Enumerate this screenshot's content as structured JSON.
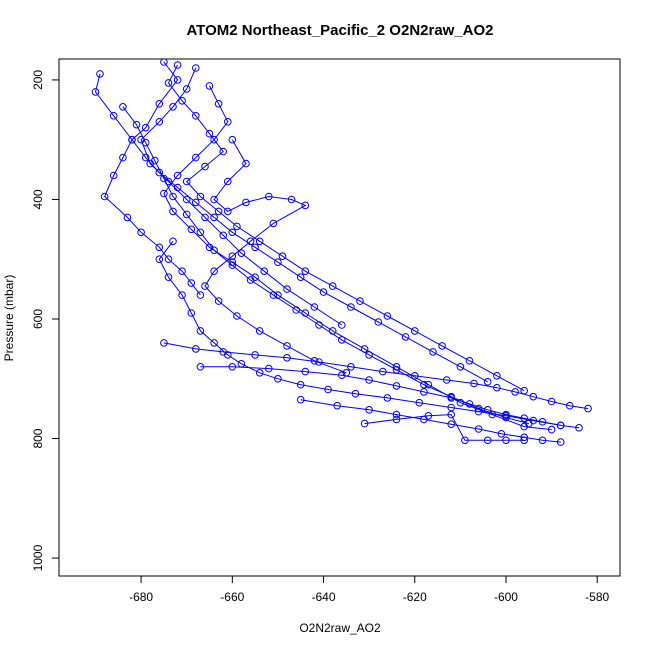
{
  "chart_data": {
    "type": "line",
    "title": "ATOM2 Northeast_Pacific_2 O2N2raw_AO2",
    "xlabel": "O2N2raw_AO2",
    "ylabel": "Pressure (mbar)",
    "xlim": [
      -698,
      -575
    ],
    "ylim": [
      1030,
      165
    ],
    "y_reversed": true,
    "grid": false,
    "xticks": [
      -680,
      -660,
      -640,
      -620,
      -600,
      -580
    ],
    "yticks": [
      200,
      400,
      600,
      800,
      1000
    ],
    "xtick_labels": [
      "-680",
      "-660",
      "-640",
      "-620",
      "-600",
      "-580"
    ],
    "ytick_labels": [
      "200",
      "400",
      "600",
      "800",
      "1000"
    ],
    "series": [
      {
        "color": "#0000ff",
        "marker": "open-circle",
        "x": [
          -675,
          -672,
          -676,
          -679,
          -682,
          -684,
          -686,
          -688,
          -683,
          -680,
          -676,
          -674,
          -671,
          -669,
          -667
        ],
        "y": [
          170,
          200,
          240,
          280,
          300,
          330,
          360,
          395,
          430,
          455,
          480,
          500,
          520,
          540,
          560
        ]
      },
      {
        "color": "#0000ff",
        "marker": "open-circle",
        "x": [
          -668,
          -670,
          -673,
          -676,
          -680,
          -678,
          -674,
          -670,
          -666,
          -662,
          -658,
          -653,
          -648,
          -642,
          -636
        ],
        "y": [
          180,
          215,
          245,
          270,
          300,
          340,
          370,
          400,
          430,
          460,
          490,
          520,
          550,
          580,
          610
        ]
      },
      {
        "color": "#0000ff",
        "marker": "open-circle",
        "x": [
          -689,
          -690,
          -686,
          -682,
          -679,
          -676,
          -672,
          -668,
          -664,
          -660,
          -655,
          -650,
          -645,
          -640,
          -634,
          -628,
          -622,
          -616,
          -610,
          -604
        ],
        "y": [
          190,
          220,
          260,
          300,
          330,
          355,
          380,
          405,
          430,
          455,
          480,
          505,
          530,
          555,
          580,
          605,
          630,
          655,
          680,
          705
        ]
      },
      {
        "color": "#0000ff",
        "marker": "open-circle",
        "x": [
          -672,
          -674,
          -671,
          -668,
          -665,
          -662,
          -666,
          -670,
          -667,
          -663,
          -659,
          -654,
          -649,
          -644,
          -638,
          -632,
          -626,
          -620,
          -614,
          -608,
          -602,
          -596
        ],
        "y": [
          175,
          205,
          235,
          260,
          290,
          320,
          345,
          370,
          395,
          420,
          445,
          470,
          495,
          520,
          545,
          570,
          595,
          620,
          645,
          670,
          695,
          720
        ]
      },
      {
        "color": "#0000ff",
        "marker": "open-circle",
        "x": [
          -665,
          -663,
          -661,
          -664,
          -668,
          -672,
          -675,
          -673,
          -669,
          -665,
          -660,
          -655,
          -650,
          -644,
          -638,
          -631,
          -624,
          -617,
          -610,
          -603,
          -596,
          -590
        ],
        "y": [
          210,
          240,
          270,
          300,
          330,
          360,
          390,
          420,
          450,
          480,
          505,
          530,
          560,
          590,
          620,
          650,
          680,
          710,
          740,
          760,
          780,
          785
        ]
      },
      {
        "color": "#0000ff",
        "marker": "open-circle",
        "x": [
          -684,
          -681,
          -679,
          -677,
          -675,
          -673,
          -670,
          -667,
          -664,
          -660,
          -656,
          -651,
          -646,
          -641,
          -636,
          -630,
          -624,
          -618,
          -612,
          -606,
          -600,
          -595
        ],
        "y": [
          245,
          275,
          305,
          335,
          365,
          395,
          425,
          455,
          485,
          510,
          535,
          560,
          585,
          610,
          635,
          660,
          685,
          710,
          730,
          750,
          765,
          775
        ]
      },
      {
        "color": "#0000ff",
        "marker": "open-circle",
        "x": [
          -660,
          -657,
          -661,
          -664,
          -661,
          -657,
          -652,
          -647,
          -644,
          -651,
          -656,
          -660,
          -664,
          -666,
          -663,
          -659,
          -654,
          -648,
          -642,
          -635
        ],
        "y": [
          300,
          340,
          370,
          400,
          420,
          405,
          395,
          400,
          410,
          440,
          470,
          495,
          520,
          545,
          570,
          595,
          620,
          645,
          670,
          690
        ]
      },
      {
        "color": "#0000ff",
        "marker": "open-circle",
        "x": [
          -673,
          -676,
          -674,
          -671,
          -669,
          -667,
          -664,
          -661,
          -658,
          -654,
          -650,
          -645,
          -639,
          -633,
          -626,
          -619,
          -612,
          -606,
          -600,
          -594,
          -588
        ],
        "y": [
          470,
          500,
          530,
          560,
          590,
          620,
          640,
          660,
          675,
          690,
          700,
          710,
          718,
          725,
          732,
          740,
          748,
          755,
          762,
          770,
          778
        ]
      },
      {
        "color": "#0000ff",
        "marker": "open-circle",
        "x": [
          -675,
          -668,
          -662,
          -655,
          -648,
          -641,
          -634,
          -627,
          -620,
          -613,
          -607,
          -602,
          -598,
          -594,
          -590,
          -586,
          -582
        ],
        "y": [
          640,
          650,
          655,
          660,
          665,
          672,
          680,
          688,
          695,
          702,
          708,
          715,
          722,
          730,
          738,
          745,
          750
        ]
      },
      {
        "color": "#0000ff",
        "marker": "open-circle",
        "x": [
          -667,
          -660,
          -652,
          -644,
          -636,
          -630,
          -624,
          -618,
          -612,
          -608,
          -604,
          -600,
          -596,
          -592,
          -588,
          -584
        ],
        "y": [
          680,
          680,
          683,
          688,
          694,
          702,
          712,
          722,
          732,
          742,
          752,
          760,
          766,
          772,
          778,
          782
        ]
      },
      {
        "color": "#0000ff",
        "marker": "open-circle",
        "x": [
          -645,
          -637,
          -630,
          -624,
          -618,
          -612,
          -606,
          -601,
          -596,
          -592,
          -588
        ],
        "y": [
          735,
          745,
          752,
          760,
          768,
          776,
          784,
          792,
          798,
          803,
          806
        ]
      },
      {
        "color": "#0000ff",
        "marker": "open-circle",
        "x": [
          -631,
          -624,
          -617,
          -612,
          -609,
          -604,
          -600,
          -596
        ],
        "y": [
          775,
          768,
          762,
          760,
          803,
          803,
          803,
          803
        ]
      }
    ]
  }
}
